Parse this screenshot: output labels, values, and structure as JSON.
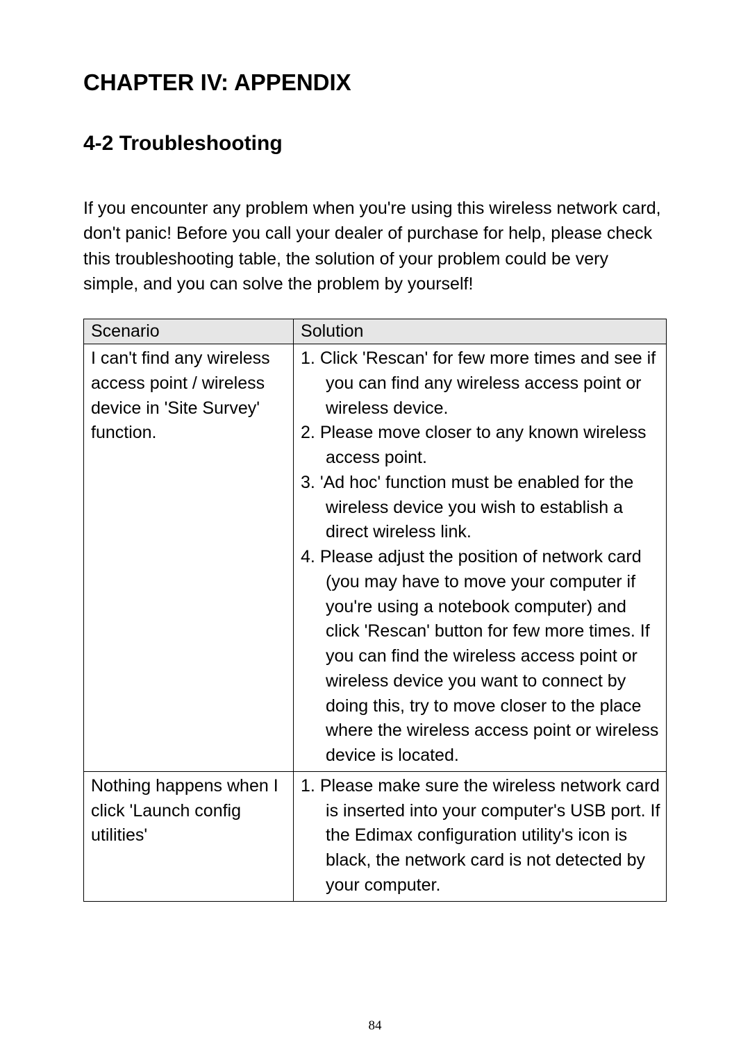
{
  "chapter_title": "CHAPTER IV: APPENDIX",
  "section_title": "4-2 Troubleshooting",
  "intro": "If you encounter any problem when you're using this wireless network card, don't panic! Before you call your dealer of purchase for help, please check this troubleshooting table, the solution of your problem could be very simple, and you can solve the problem by yourself!",
  "table": {
    "header_bg": "#e6e6e6",
    "border_color": "#000000",
    "columns": [
      "Scenario",
      "Solution"
    ],
    "rows": [
      {
        "scenario": "I can't find any wireless access point / wireless device in 'Site Survey' function.",
        "solutions": [
          "1.  Click 'Rescan' for few more times and see if you can find any wireless access point or wireless device.",
          "2.  Please move closer to any known wireless access point.",
          "3.  'Ad hoc' function must be enabled for the wireless device you wish to establish a direct wireless link.",
          "4.  Please adjust the position of network card (you may have to move your computer if you're using a notebook computer) and click 'Rescan' button for few more times. If you can find the wireless access point or wireless device you want to connect by doing this, try to move closer to the place where the wireless access point or wireless device is located."
        ]
      },
      {
        "scenario": "Nothing happens when I click 'Launch config utilities'",
        "solutions": [
          "1.  Please make sure the wireless network card is inserted into your computer's USB port. If the Edimax configuration utility's icon is black, the network card is not detected by your computer."
        ]
      }
    ]
  },
  "page_number": "84"
}
